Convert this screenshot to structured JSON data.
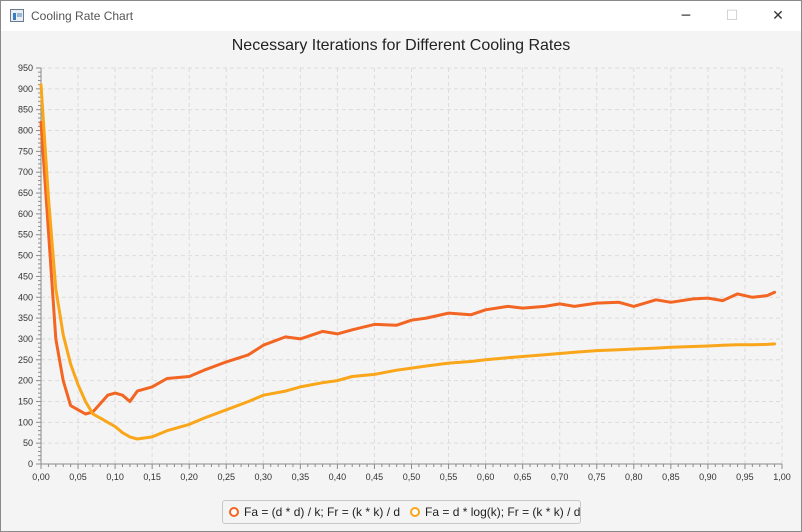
{
  "window": {
    "title": "Cooling Rate Chart",
    "minimize": "─",
    "maximize": "☐",
    "close": "✕"
  },
  "chart_data": {
    "type": "line",
    "title": "Necessary Iterations for Different Cooling Rates",
    "xlabel": "",
    "ylabel": "",
    "xlim": [
      0,
      1.0
    ],
    "ylim": [
      0,
      950
    ],
    "grid": true,
    "x_tick_labels": [
      "0,00",
      "0,05",
      "0,10",
      "0,15",
      "0,20",
      "0,25",
      "0,30",
      "0,35",
      "0,40",
      "0,45",
      "0,50",
      "0,55",
      "0,60",
      "0,65",
      "0,70",
      "0,75",
      "0,80",
      "0,85",
      "0,90",
      "0,95",
      "1,00"
    ],
    "y_tick_labels": [
      "0",
      "50",
      "100",
      "150",
      "200",
      "250",
      "300",
      "350",
      "400",
      "450",
      "500",
      "550",
      "600",
      "650",
      "700",
      "750",
      "800",
      "850",
      "900",
      "950"
    ],
    "legend_position": "bottom-center",
    "series": [
      {
        "name": "Fa = (d * d) / k; Fr = (k * k) / d",
        "color": "#f26522",
        "x": [
          0.0,
          0.01,
          0.02,
          0.03,
          0.04,
          0.05,
          0.06,
          0.07,
          0.08,
          0.09,
          0.1,
          0.11,
          0.12,
          0.13,
          0.15,
          0.17,
          0.2,
          0.22,
          0.25,
          0.28,
          0.3,
          0.33,
          0.35,
          0.38,
          0.4,
          0.42,
          0.45,
          0.48,
          0.5,
          0.52,
          0.55,
          0.58,
          0.6,
          0.63,
          0.65,
          0.68,
          0.7,
          0.72,
          0.75,
          0.78,
          0.8,
          0.83,
          0.85,
          0.88,
          0.9,
          0.92,
          0.94,
          0.96,
          0.98,
          0.99
        ],
        "values": [
          820,
          560,
          300,
          200,
          140,
          130,
          120,
          125,
          145,
          165,
          170,
          165,
          150,
          175,
          185,
          205,
          210,
          225,
          245,
          262,
          285,
          305,
          300,
          318,
          312,
          322,
          335,
          333,
          345,
          350,
          362,
          358,
          370,
          378,
          374,
          378,
          384,
          378,
          386,
          388,
          378,
          394,
          388,
          396,
          398,
          392,
          408,
          400,
          404,
          412
        ]
      },
      {
        "name": "Fa = d * log(k); Fr = (k * k) / d",
        "color": "#f9a61a",
        "x": [
          0.0,
          0.01,
          0.02,
          0.03,
          0.04,
          0.05,
          0.06,
          0.07,
          0.08,
          0.09,
          0.1,
          0.11,
          0.12,
          0.13,
          0.15,
          0.17,
          0.2,
          0.22,
          0.25,
          0.28,
          0.3,
          0.33,
          0.35,
          0.38,
          0.4,
          0.42,
          0.45,
          0.48,
          0.5,
          0.52,
          0.55,
          0.58,
          0.6,
          0.63,
          0.65,
          0.68,
          0.7,
          0.72,
          0.75,
          0.78,
          0.8,
          0.83,
          0.85,
          0.88,
          0.9,
          0.92,
          0.94,
          0.96,
          0.98,
          0.99
        ],
        "values": [
          910,
          640,
          420,
          310,
          240,
          190,
          150,
          120,
          110,
          100,
          90,
          75,
          65,
          60,
          65,
          80,
          95,
          110,
          130,
          150,
          165,
          175,
          185,
          195,
          200,
          210,
          215,
          225,
          230,
          235,
          242,
          246,
          250,
          255,
          258,
          262,
          265,
          268,
          272,
          274,
          276,
          278,
          280,
          282,
          283,
          285,
          286,
          286,
          287,
          288
        ]
      }
    ]
  }
}
